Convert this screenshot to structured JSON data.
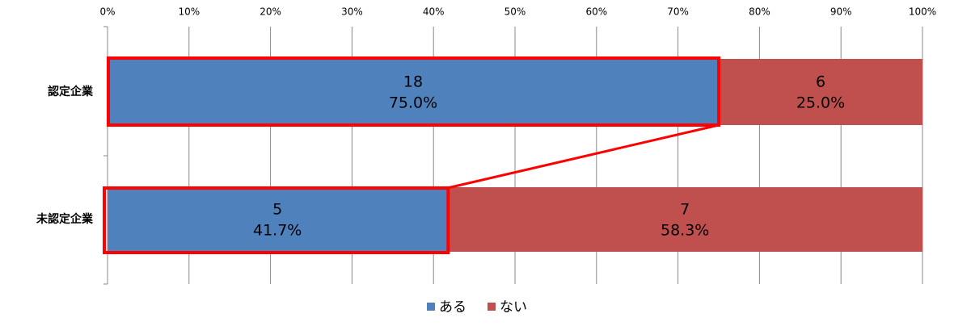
{
  "chart_data": {
    "type": "stacked-bar-horizontal",
    "categories": [
      "認定企業",
      "未認定企業"
    ],
    "series": [
      {
        "name": "ある",
        "color": "#4f81bd",
        "values": [
          75.0,
          41.7
        ],
        "value_labels": [
          "75.0%",
          "41.7%"
        ],
        "counts": [
          18,
          5
        ]
      },
      {
        "name": "ない",
        "color": "#c0504d",
        "values": [
          25.0,
          58.3
        ],
        "value_labels": [
          "25.0%",
          "58.3%"
        ],
        "counts": [
          6,
          7
        ]
      }
    ],
    "xlim": [
      0,
      100
    ],
    "xticks": [
      {
        "value": 0,
        "label": "0%"
      },
      {
        "value": 10,
        "label": "10%"
      },
      {
        "value": 20,
        "label": "20%"
      },
      {
        "value": 30,
        "label": "30%"
      },
      {
        "value": 40,
        "label": "40%"
      },
      {
        "value": 50,
        "label": "50%"
      },
      {
        "value": 60,
        "label": "60%"
      },
      {
        "value": 70,
        "label": "70%"
      },
      {
        "value": 80,
        "label": "80%"
      },
      {
        "value": 90,
        "label": "90%"
      },
      {
        "value": 100,
        "label": "100%"
      }
    ],
    "grid": true,
    "legend": "bottom"
  }
}
